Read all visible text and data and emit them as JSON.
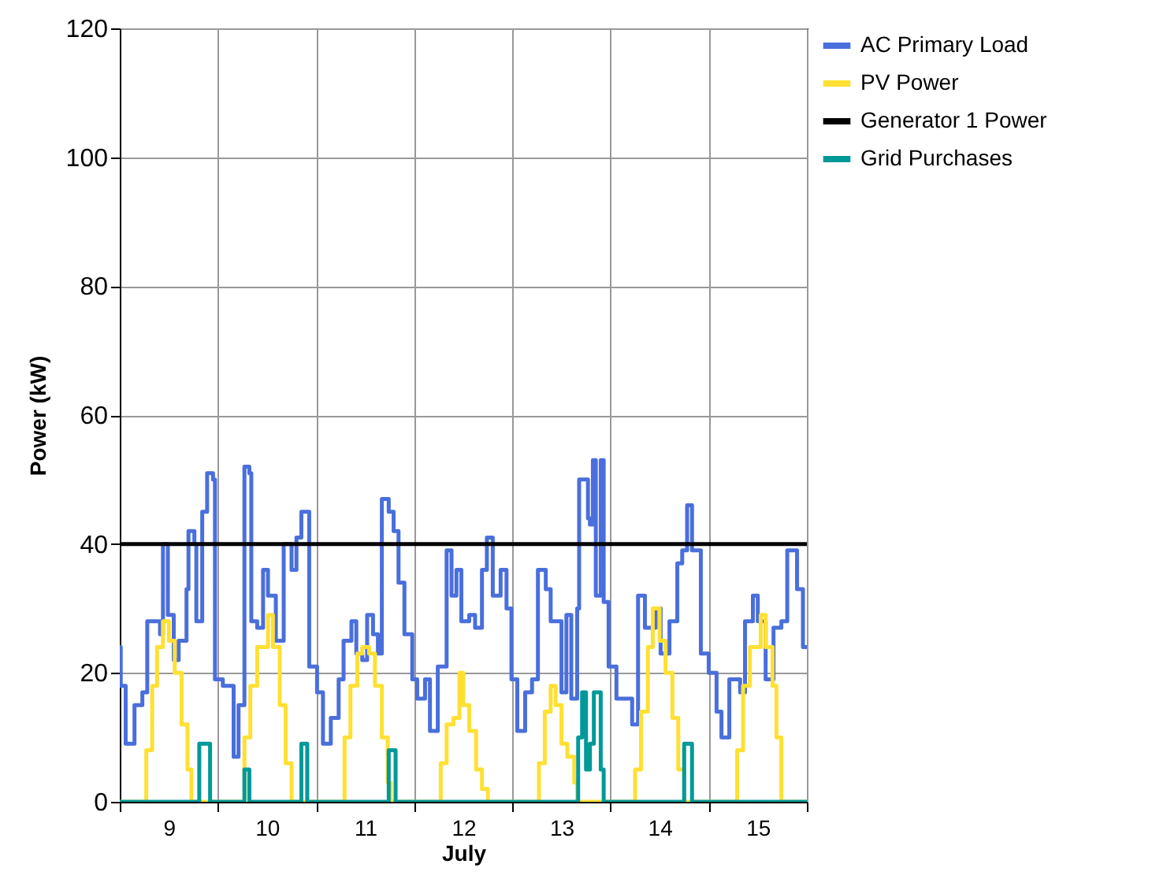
{
  "chart_data": {
    "type": "step",
    "xlabel": "July",
    "ylabel": "Power (kW)",
    "xlim": [
      8.5,
      15.5
    ],
    "xticks": [
      {
        "value": 8.5,
        "label": null
      },
      9,
      {
        "value": 9.5,
        "label": null
      },
      10,
      {
        "value": 10.5,
        "label": null
      },
      11,
      {
        "value": 11.5,
        "label": null
      },
      12,
      {
        "value": 12.5,
        "label": null
      },
      13,
      {
        "value": 13.5,
        "label": null
      },
      14,
      {
        "value": 14.5,
        "label": null
      },
      15,
      {
        "value": 15.5,
        "label": null
      }
    ],
    "ylim": [
      0,
      120
    ],
    "yticks": [
      0,
      20,
      40,
      60,
      80,
      100,
      120
    ],
    "grid": true,
    "legend": "top right",
    "series": [
      {
        "name": "AC Primary Load",
        "color": "#4a6fdc",
        "x": [
          8.5,
          8.51,
          8.56,
          8.65,
          8.73,
          8.78,
          8.86,
          8.91,
          8.94,
          8.99,
          9.05,
          9.1,
          9.18,
          9.2,
          9.26,
          9.28,
          9.34,
          9.39,
          9.45,
          9.47,
          9.55,
          9.66,
          9.71,
          9.77,
          9.82,
          9.84,
          9.9,
          9.96,
          10.01,
          10.09,
          10.17,
          10.25,
          10.3,
          10.35,
          10.41,
          10.43,
          10.51,
          10.57,
          10.65,
          10.73,
          10.78,
          10.86,
          10.91,
          10.97,
          11.02,
          11.08,
          11.13,
          11.17,
          11.24,
          11.29,
          11.34,
          11.4,
          11.48,
          11.53,
          11.61,
          11.66,
          11.74,
          11.83,
          11.88,
          11.93,
          11.98,
          12.06,
          12.12,
          12.19,
          12.24,
          12.3,
          12.38,
          12.44,
          12.49,
          12.55,
          12.63,
          12.7,
          12.76,
          12.84,
          12.89,
          12.95,
          13,
          13.05,
          13.1,
          13.16,
          13.18,
          13.27,
          13.29,
          13.32,
          13.35,
          13.4,
          13.43,
          13.48,
          13.56,
          13.64,
          13.72,
          13.78,
          13.85,
          13.96,
          14.01,
          14.1,
          14.18,
          14.23,
          14.28,
          14.33,
          14.42,
          14.5,
          14.58,
          14.63,
          14.71,
          14.82,
          14.87,
          14.95,
          15,
          15.08,
          15.16,
          15.24,
          15.3,
          15.35,
          15.4,
          15.46,
          15.5
        ],
        "values": [
          24,
          18,
          9,
          15,
          17,
          28,
          28,
          26,
          40,
          29,
          22,
          25,
          33,
          42,
          40,
          28,
          45,
          51,
          50,
          19,
          18,
          7,
          15,
          52,
          51,
          28,
          27,
          36,
          32,
          25,
          40,
          36,
          41,
          45,
          45,
          21,
          17,
          9,
          13,
          19,
          25,
          28,
          23,
          22,
          29,
          26,
          23,
          47,
          45,
          42,
          34,
          26,
          19,
          16,
          19,
          11,
          21,
          39,
          32,
          36,
          28,
          29,
          27,
          36,
          41,
          32,
          36,
          30,
          19,
          11,
          17,
          19,
          36,
          33,
          28,
          28,
          17,
          29,
          16,
          30,
          50,
          44,
          43,
          53,
          32,
          53,
          31,
          21,
          16,
          16,
          12,
          32,
          27,
          30,
          23,
          28,
          37,
          39,
          46,
          39,
          23,
          20,
          14,
          10,
          19,
          17,
          28,
          32,
          28,
          19,
          27,
          28,
          39,
          39,
          33,
          24,
          24
        ]
      },
      {
        "name": "PV Power",
        "color": "#ffe033",
        "x": [
          8.5,
          8.73,
          8.77,
          8.83,
          8.88,
          8.94,
          9,
          9.06,
          9.13,
          9.19,
          9.23,
          9.71,
          9.77,
          9.83,
          9.9,
          10.01,
          10.06,
          10.13,
          10.19,
          10.25,
          10.73,
          10.79,
          10.85,
          10.92,
          10.97,
          11.04,
          11.1,
          11.17,
          11.23,
          11.26,
          11.72,
          11.77,
          11.83,
          11.9,
          11.96,
          12,
          12.06,
          12.13,
          12.19,
          12.25,
          12.7,
          12.77,
          12.83,
          12.89,
          12.94,
          13,
          13.06,
          13.13,
          13.16,
          13.69,
          13.75,
          13.81,
          13.88,
          13.93,
          14,
          14.06,
          14.13,
          14.19,
          14.25,
          14.73,
          14.79,
          14.85,
          14.92,
          15.03,
          15.08,
          15.15,
          15.19,
          15.24,
          15.5
        ],
        "values": [
          0,
          0,
          8,
          18,
          24,
          28,
          25,
          20,
          12,
          5,
          0,
          0,
          10,
          18,
          24,
          29,
          24,
          15,
          6,
          0,
          0,
          10,
          18,
          23,
          24,
          23,
          18,
          10,
          3,
          0,
          0,
          6,
          12,
          13,
          20,
          15,
          11,
          5,
          2,
          0,
          0,
          6,
          14,
          18,
          15,
          9,
          7,
          3,
          0,
          0,
          5,
          14,
          24,
          30,
          25,
          20,
          13,
          5,
          0,
          0,
          8,
          18,
          24,
          29,
          24,
          18,
          10,
          0,
          0
        ]
      },
      {
        "name": "Generator 1 Power",
        "color": "#000000",
        "type": "line",
        "x": [
          8.5,
          15.5
        ],
        "values": [
          40,
          40
        ]
      },
      {
        "name": "Grid Purchases",
        "color": "#009999",
        "x": [
          8.5,
          9.31,
          9.42,
          9.77,
          9.82,
          10.35,
          10.41,
          11.24,
          11.31,
          13.17,
          13.21,
          13.25,
          13.29,
          13.33,
          13.4,
          13.43,
          14.25,
          14.33,
          15.5
        ],
        "values": [
          0,
          9,
          0,
          5,
          0,
          9,
          0,
          8,
          0,
          10,
          17,
          5,
          9,
          17,
          5,
          0,
          9,
          0,
          0
        ]
      }
    ]
  }
}
